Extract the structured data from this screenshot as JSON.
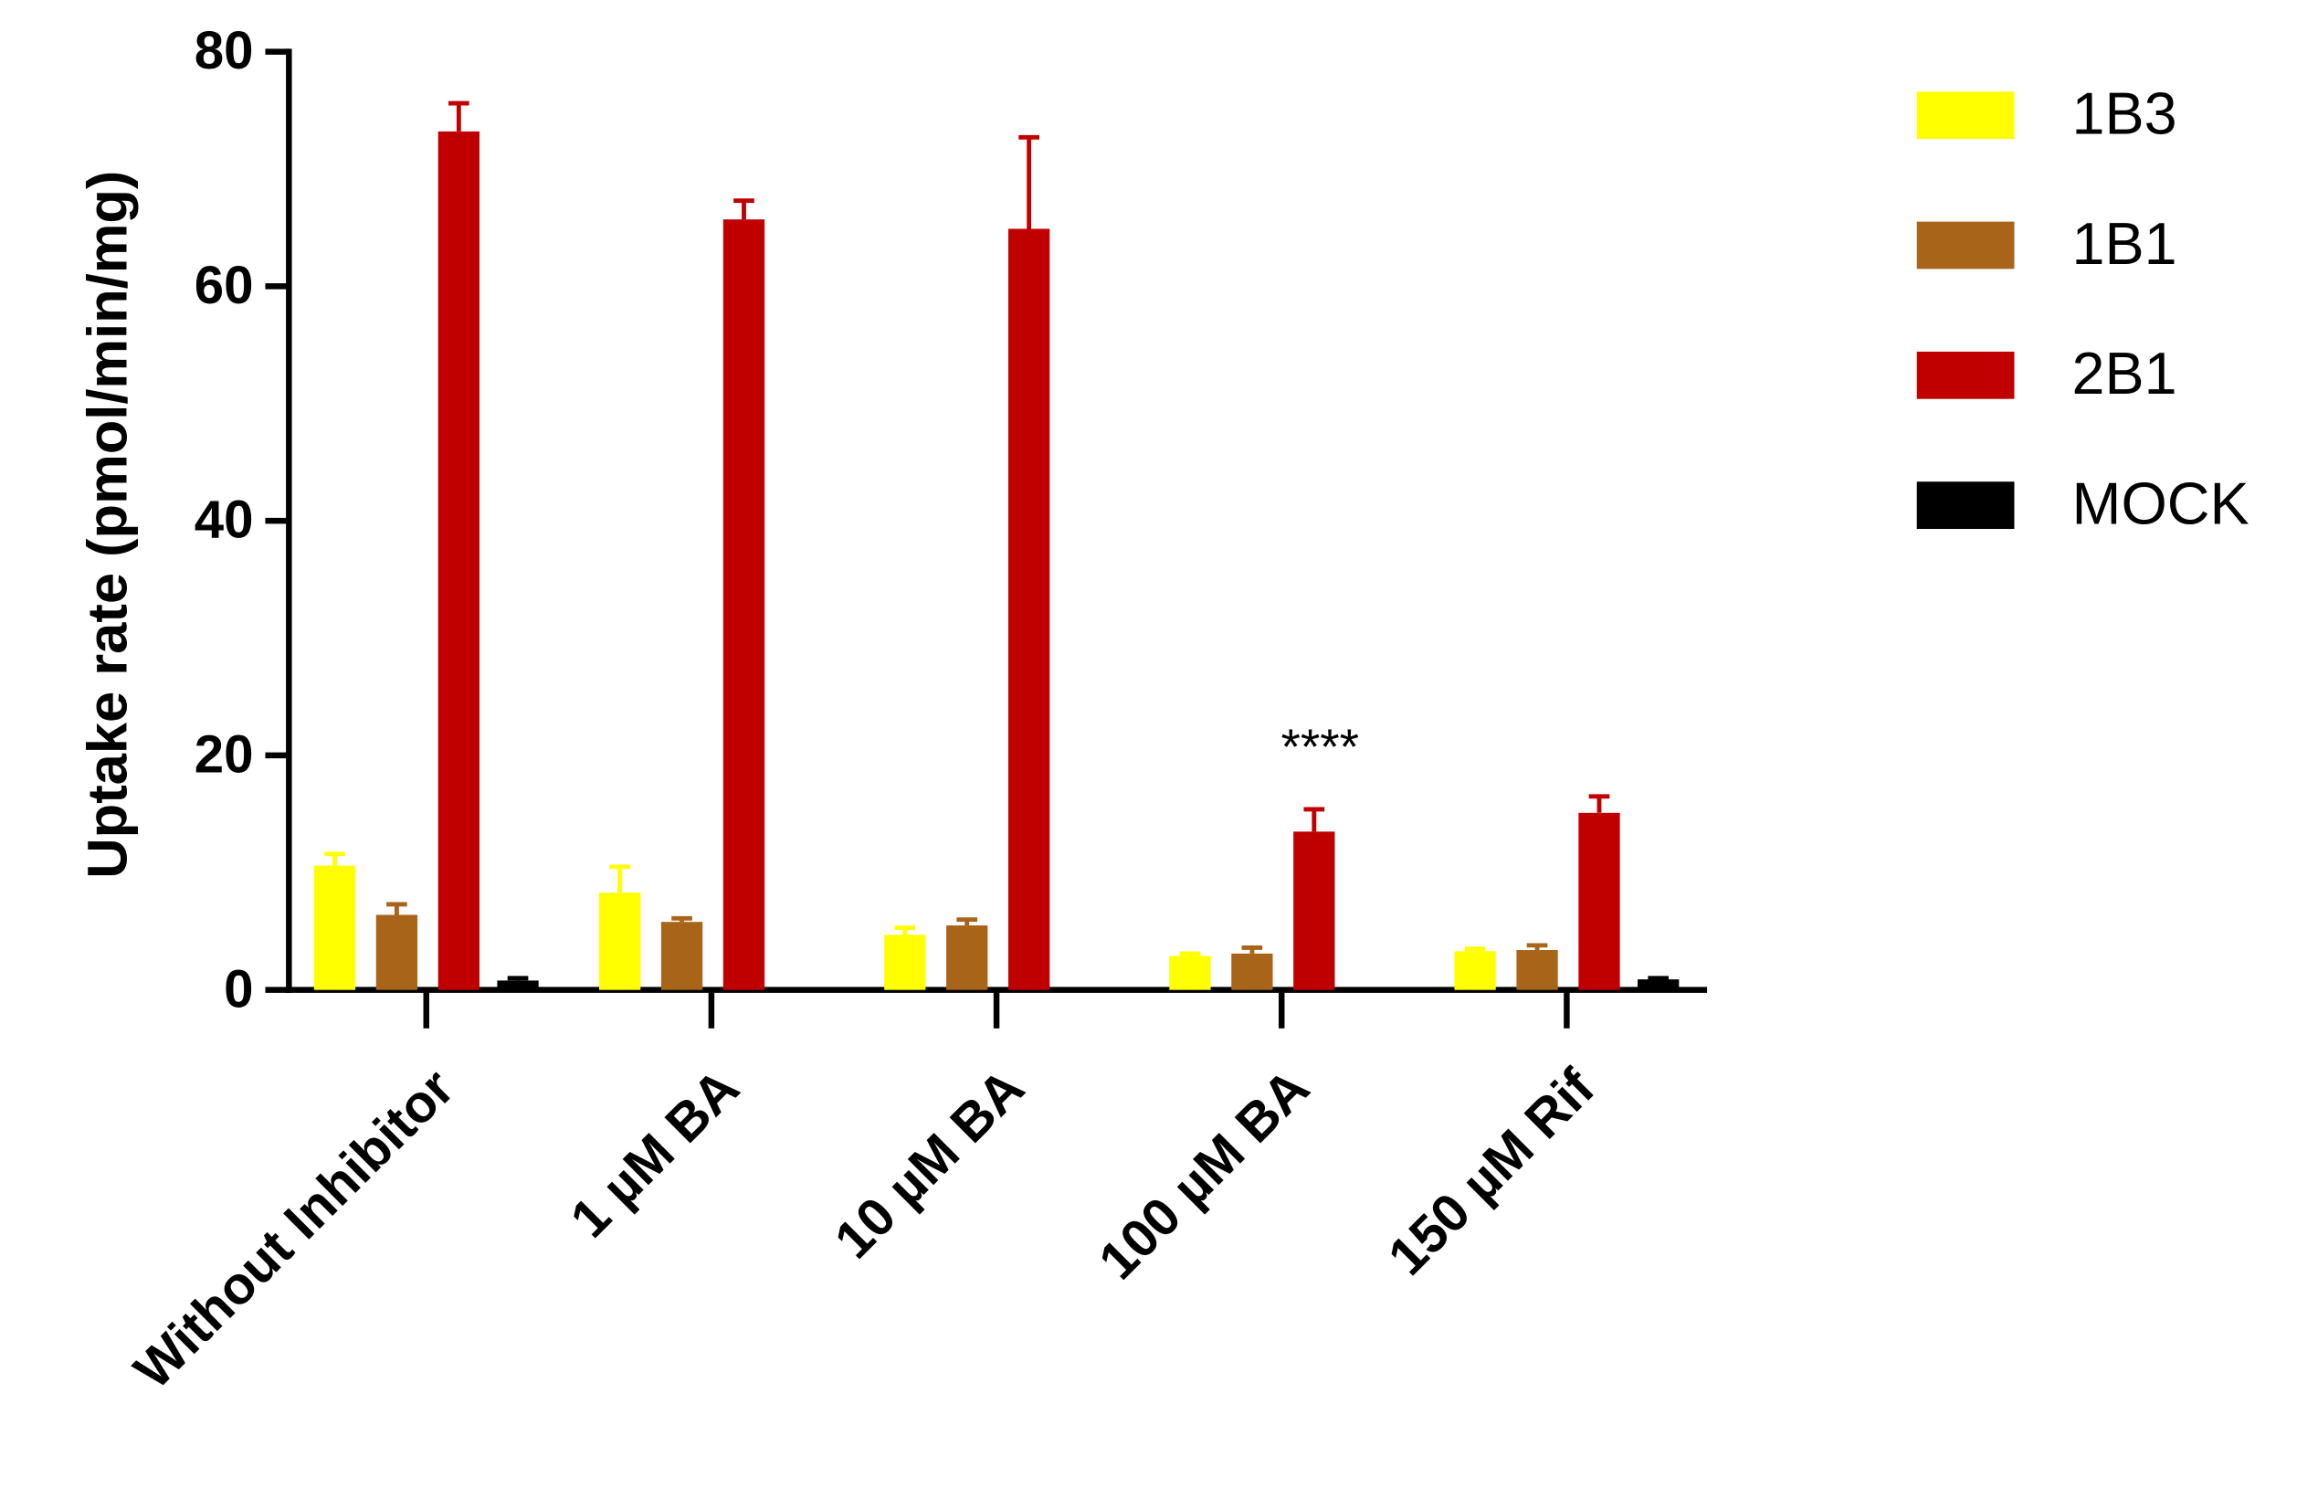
{
  "chart_data": {
    "type": "bar",
    "y_label": "Uptake rate (pmol/min/mg)",
    "categories": [
      "Without Inhibitor",
      "1 µM BA",
      "10 µM BA",
      "100 µM BA",
      "150 µM Rif"
    ],
    "series": [
      {
        "name": "1B3",
        "color": "#ffff00",
        "values": [
          10.6,
          8.3,
          4.7,
          2.9,
          3.3
        ],
        "errors": [
          1.0,
          2.2,
          0.6,
          0.2,
          0.2
        ]
      },
      {
        "name": "1B1",
        "color": "#a8651a",
        "values": [
          6.4,
          5.8,
          5.5,
          3.1,
          3.4
        ],
        "errors": [
          0.9,
          0.3,
          0.5,
          0.5,
          0.4
        ]
      },
      {
        "name": "2B1",
        "color": "#c00000",
        "values": [
          73.2,
          65.7,
          64.9,
          13.5,
          15.1
        ],
        "errors": [
          2.4,
          1.6,
          7.8,
          1.9,
          1.4
        ]
      },
      {
        "name": "MOCK",
        "color": "#000000",
        "values": [
          0.8,
          null,
          null,
          null,
          0.9
        ],
        "errors": [
          0.2,
          null,
          null,
          null,
          0.1
        ]
      }
    ],
    "annotation": "****",
    "ylim": [
      0,
      80
    ],
    "yticks": [
      0,
      20,
      40,
      60,
      80
    ]
  }
}
